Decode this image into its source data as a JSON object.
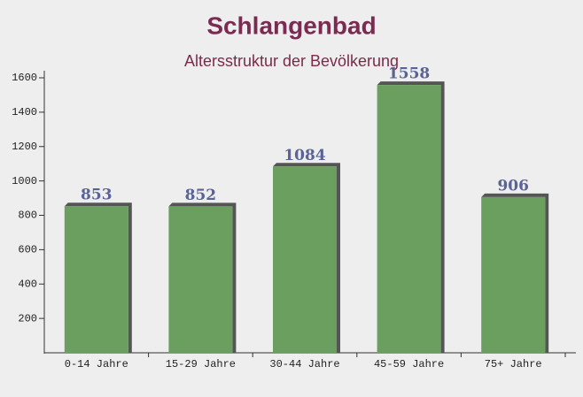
{
  "chart_data": {
    "type": "bar",
    "title": "Schlangenbad",
    "subtitle": "Altersstruktur der Bevölkerung",
    "categories": [
      "0-14 Jahre",
      "15-29 Jahre",
      "30-44 Jahre",
      "45-59 Jahre",
      "75+ Jahre"
    ],
    "values": [
      853,
      852,
      1084,
      1558,
      906
    ],
    "color": "#6a9f5f",
    "ylim": [
      0,
      1600
    ],
    "yticks": [
      200,
      400,
      600,
      800,
      1000,
      1200,
      1400,
      1600
    ]
  }
}
